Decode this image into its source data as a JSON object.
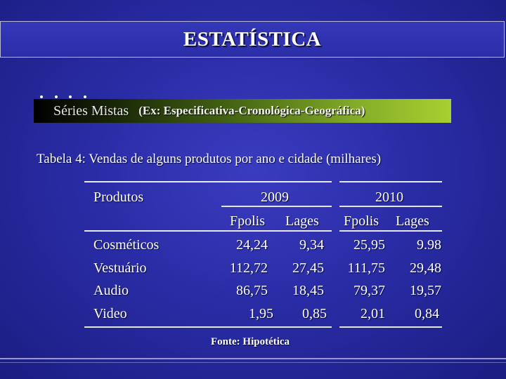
{
  "title": "ESTATÍSTICA",
  "series": {
    "main": "Séries Mistas",
    "sub": "(Ex: Especificativa-Cronológica-Geográfica)"
  },
  "table_caption": "Tabela 4: Vendas de alguns produtos por ano e cidade (milhares)",
  "table": {
    "col_header": "Produtos",
    "years": [
      "2009",
      "2010"
    ],
    "cities": [
      "Fpolis",
      "Lages",
      "Fpolis",
      "Lages"
    ],
    "rows": [
      {
        "product": "Cosméticos",
        "values": [
          "24,24",
          "9,34",
          "25,95",
          "9.98"
        ]
      },
      {
        "product": "Vestuário",
        "values": [
          "112,72",
          "27,45",
          "111,75",
          "29,48"
        ]
      },
      {
        "product": "Audio",
        "values": [
          "86,75",
          "18,45",
          "79,37",
          "19,57"
        ]
      },
      {
        "product": "Video",
        "values": [
          "1,95",
          "0,85",
          "2,01",
          "0,84"
        ]
      }
    ]
  },
  "source": "Fonte: Hipotética",
  "colors": {
    "background": "#2a2ca6",
    "series_bar_end": "#a8d030"
  }
}
